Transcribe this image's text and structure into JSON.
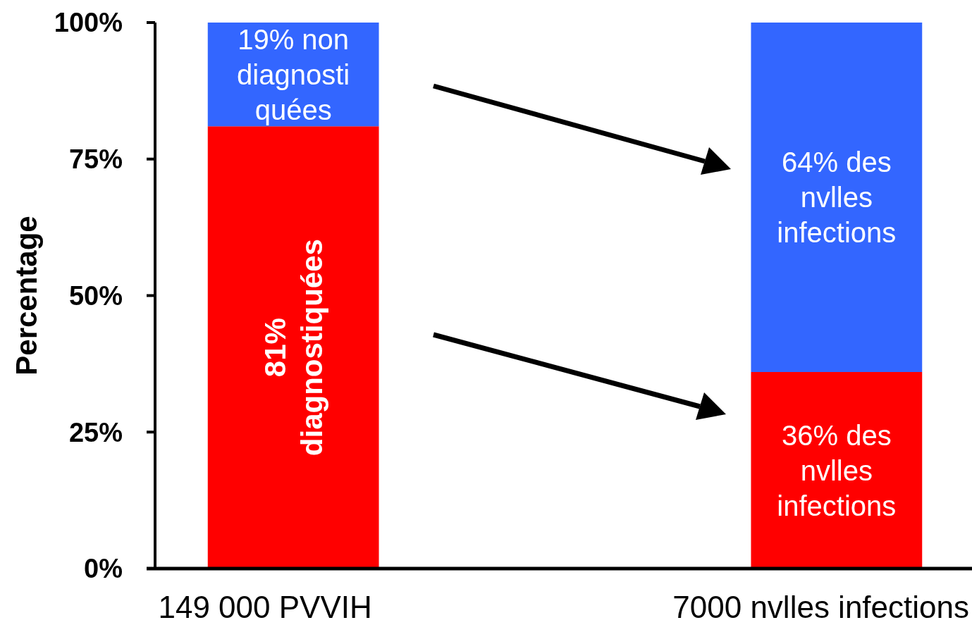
{
  "chart_data": {
    "type": "bar",
    "stacked": true,
    "ylabel": "Percentage",
    "categories": [
      "149 000 PVVIH",
      "7000 nvlles infections"
    ],
    "series": [
      {
        "color": "#ff0000",
        "values": [
          81,
          36
        ],
        "value_labels": [
          "81%\ndiagnostiquées",
          "36% des\nnvlles\ninfections"
        ]
      },
      {
        "color": "#3366ff",
        "values": [
          19,
          64
        ],
        "value_labels": [
          "19% non\ndiagnosti\nquées",
          "64% des\nnvlles\ninfections"
        ]
      }
    ],
    "ylim": [
      0,
      100
    ],
    "yticks": [
      {
        "value": 0,
        "label": "0%"
      },
      {
        "value": 25,
        "label": "25%"
      },
      {
        "value": 50,
        "label": "50%"
      },
      {
        "value": 75,
        "label": "75%"
      },
      {
        "value": 100,
        "label": "100%"
      }
    ],
    "grid": false
  }
}
